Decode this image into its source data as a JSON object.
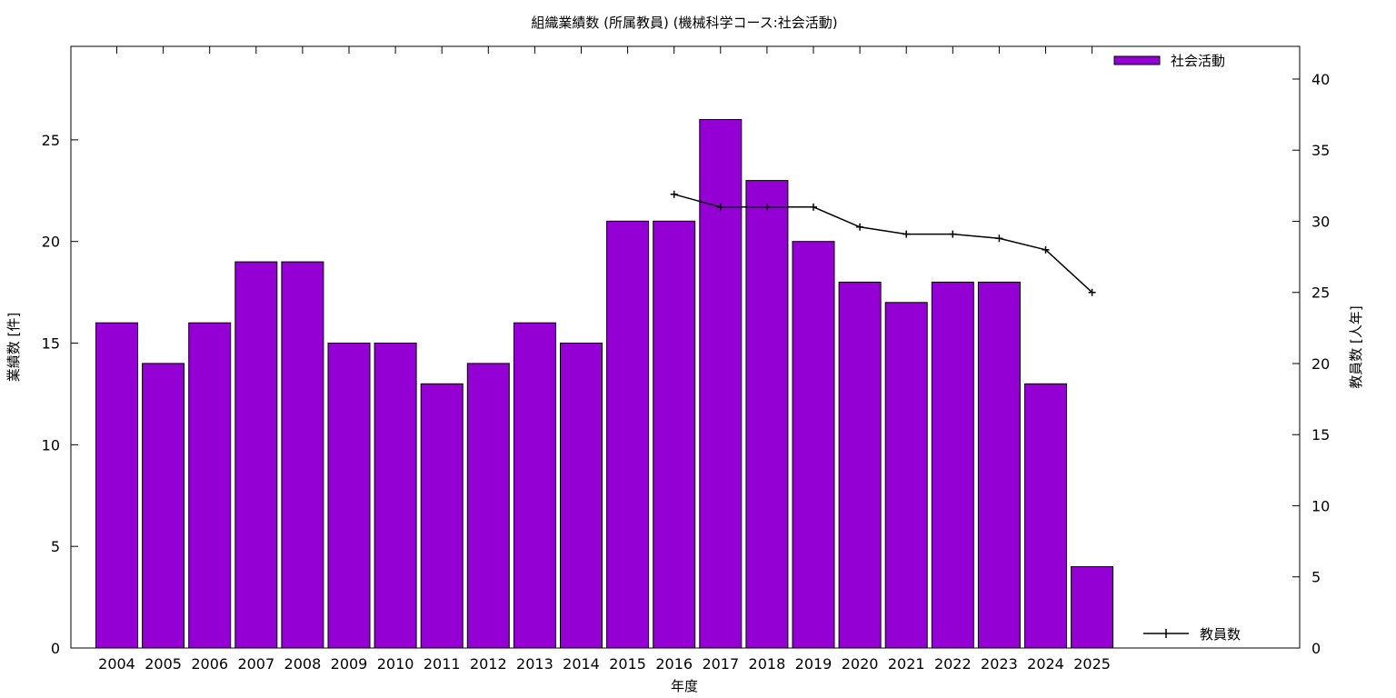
{
  "chart_data": {
    "type": "bar",
    "title": "組織業績数 (所属教員) (機械科学コース:社会活動)",
    "xlabel": "年度",
    "ylabel": "業績数 [件]",
    "y2label": "教員数 [人年]",
    "categories": [
      "2004",
      "2005",
      "2006",
      "2007",
      "2008",
      "2009",
      "2010",
      "2011",
      "2012",
      "2013",
      "2014",
      "2015",
      "2016",
      "2017",
      "2018",
      "2019",
      "2020",
      "2021",
      "2022",
      "2023",
      "2024",
      "2025"
    ],
    "series": [
      {
        "name": "社会活動",
        "type": "bar",
        "axis": "left",
        "color": "#9400d3",
        "values": [
          16,
          14,
          16,
          19,
          19,
          15,
          15,
          13,
          14,
          16,
          15,
          21,
          21,
          26,
          23,
          20,
          18,
          17,
          18,
          18,
          13,
          4
        ]
      },
      {
        "name": "教員数",
        "type": "line",
        "axis": "right",
        "color": "#000000",
        "values": [
          null,
          null,
          null,
          null,
          null,
          null,
          null,
          null,
          null,
          null,
          null,
          null,
          31.9,
          31.0,
          31.0,
          31.0,
          29.6,
          29.1,
          29.1,
          28.8,
          28.0,
          25.0
        ]
      }
    ],
    "ylim": [
      0,
      29.6
    ],
    "y2lim": [
      0,
      42.3
    ],
    "yticks": [
      "0",
      "5",
      "10",
      "15",
      "20",
      "25"
    ],
    "y2ticks": [
      "0",
      "5",
      "10",
      "15",
      "20",
      "25",
      "30",
      "35",
      "40"
    ],
    "grid": false,
    "legend_placement": "top-right and bottom-right"
  }
}
